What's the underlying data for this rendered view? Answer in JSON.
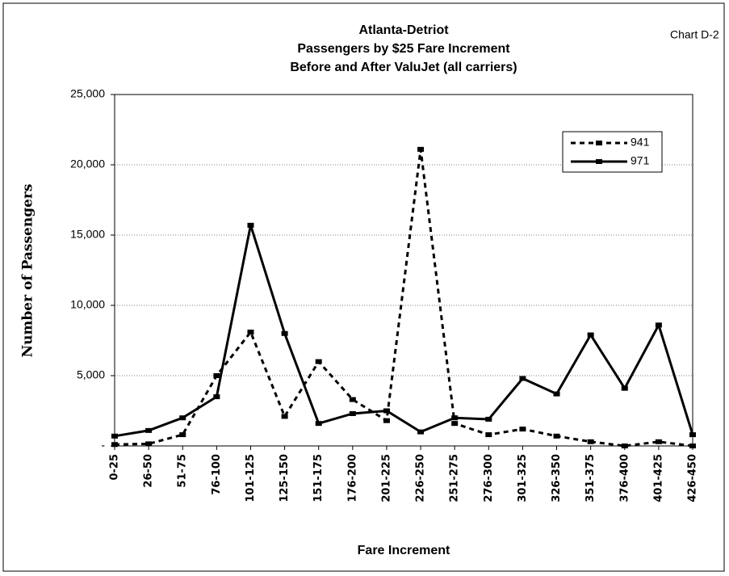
{
  "chart_data": {
    "type": "line",
    "title": [
      "Atlanta-Detriot",
      "Passengers by $25 Fare Increment",
      "Before and After ValuJet (all carriers)"
    ],
    "annotation": "Chart D-2",
    "x_label": "Fare Increment",
    "y_label": "Number of Passengers",
    "categories": [
      "0-25",
      "26-50",
      "51-75",
      "76-100",
      "101-125",
      "125-150",
      "151-175",
      "176-200",
      "201-225",
      "226-250",
      "251-275",
      "276-300",
      "301-325",
      "326-350",
      "351-375",
      "376-400",
      "401-425",
      "426-450"
    ],
    "series": [
      {
        "name": "941",
        "color": "#000000",
        "dash": true,
        "values": [
          100,
          150,
          800,
          5000,
          8100,
          2100,
          6000,
          3300,
          1800,
          21100,
          1600,
          800,
          1200,
          700,
          300,
          0,
          300,
          0
        ]
      },
      {
        "name": "971",
        "color": "#000000",
        "dash": false,
        "values": [
          700,
          1100,
          2000,
          3500,
          15700,
          8000,
          1600,
          2300,
          2500,
          1000,
          2000,
          1900,
          4800,
          3700,
          7900,
          4100,
          8600,
          800
        ]
      }
    ],
    "ylim": [
      0,
      25000
    ],
    "yticks": [
      {
        "value": 0,
        "label": "-"
      },
      {
        "value": 5000,
        "label": "5,000"
      },
      {
        "value": 10000,
        "label": "10,000"
      },
      {
        "value": 15000,
        "label": "15,000"
      },
      {
        "value": 20000,
        "label": "20,000"
      },
      {
        "value": 25000,
        "label": "25,000"
      }
    ],
    "grid": true,
    "legend": "upper right"
  }
}
